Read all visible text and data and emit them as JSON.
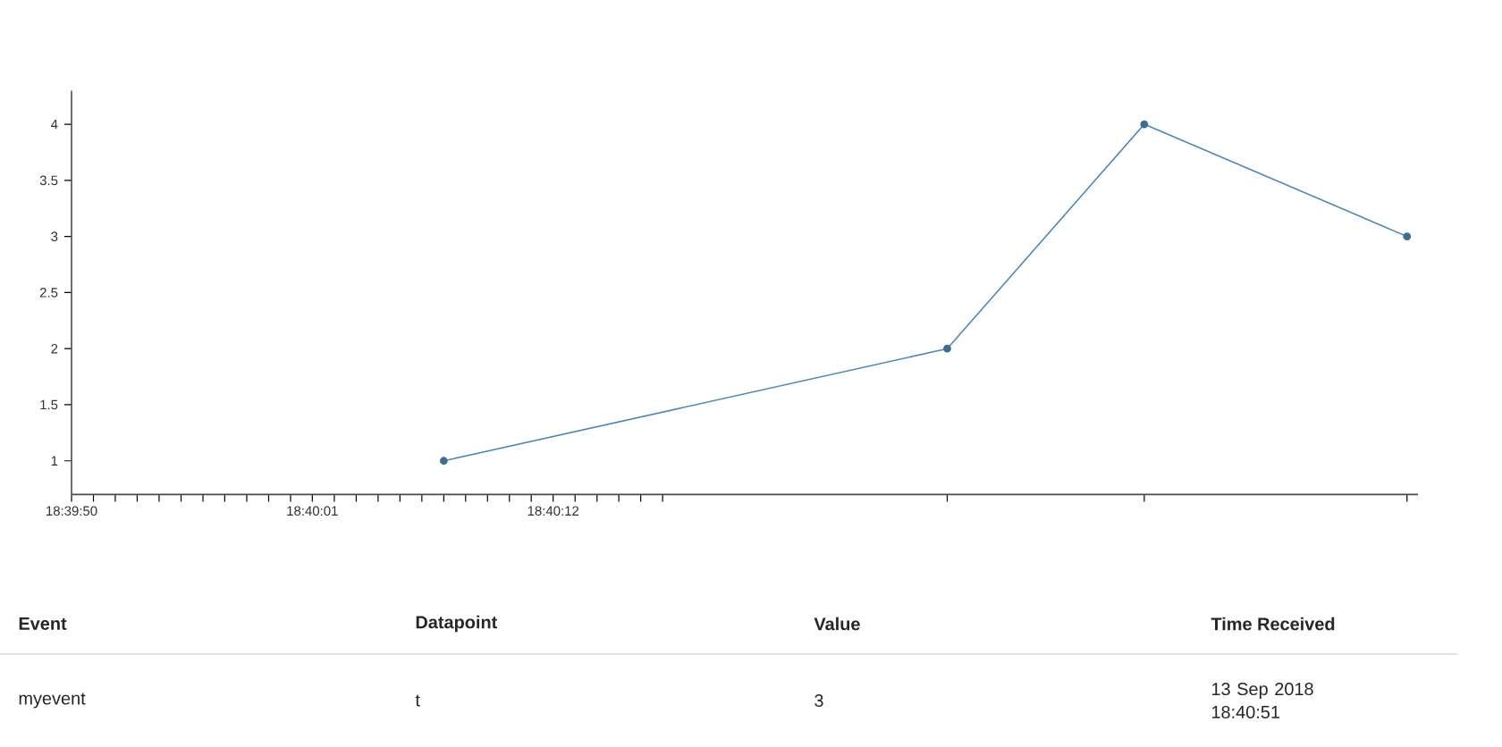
{
  "chart_data": {
    "type": "line",
    "x": [
      18.668611,
      18.675,
      18.6775,
      18.680833
    ],
    "values": [
      1,
      2,
      4,
      3
    ],
    "color": "#4f87b5",
    "marker": "circle",
    "line_style": "solid",
    "xlim": [
      18.663889,
      18.680972
    ],
    "ylim": [
      0.7,
      4.3
    ],
    "yticks": [
      1,
      1.5,
      2,
      2.5,
      3,
      3.5,
      4
    ],
    "xticks": [
      {
        "value": 18.663889,
        "label": "18:39:50"
      },
      {
        "value": 18.664167,
        "label": null
      },
      {
        "value": 18.664444,
        "label": null
      },
      {
        "value": 18.664722,
        "label": null
      },
      {
        "value": 18.665,
        "label": null
      },
      {
        "value": 18.665278,
        "label": null
      },
      {
        "value": 18.665556,
        "label": null
      },
      {
        "value": 18.665833,
        "label": null
      },
      {
        "value": 18.666111,
        "label": null
      },
      {
        "value": 18.666389,
        "label": null
      },
      {
        "value": 18.666667,
        "label": null
      },
      {
        "value": 18.666944,
        "label": "18:40:01"
      },
      {
        "value": 18.667222,
        "label": null
      },
      {
        "value": 18.6675,
        "label": null
      },
      {
        "value": 18.667778,
        "label": null
      },
      {
        "value": 18.668056,
        "label": null
      },
      {
        "value": 18.668333,
        "label": null
      },
      {
        "value": 18.668611,
        "label": null
      },
      {
        "value": 18.668889,
        "label": null
      },
      {
        "value": 18.669167,
        "label": null
      },
      {
        "value": 18.669444,
        "label": null
      },
      {
        "value": 18.669722,
        "label": null
      },
      {
        "value": 18.67,
        "label": "18:40:12"
      },
      {
        "value": 18.670278,
        "label": null
      },
      {
        "value": 18.670556,
        "label": null
      },
      {
        "value": 18.670833,
        "label": null
      },
      {
        "value": 18.671111,
        "label": null
      },
      {
        "value": 18.671389,
        "label": null
      },
      {
        "value": 18.675,
        "label": null
      },
      {
        "value": 18.6775,
        "label": null
      },
      {
        "value": 18.680833,
        "label": null
      }
    ],
    "grid": false,
    "annotations": [
      "Event",
      "Datapoint",
      "Value",
      "Time Received",
      "myevent",
      "t",
      "3",
      "13 Sep 2018 18:40:51"
    ]
  }
}
